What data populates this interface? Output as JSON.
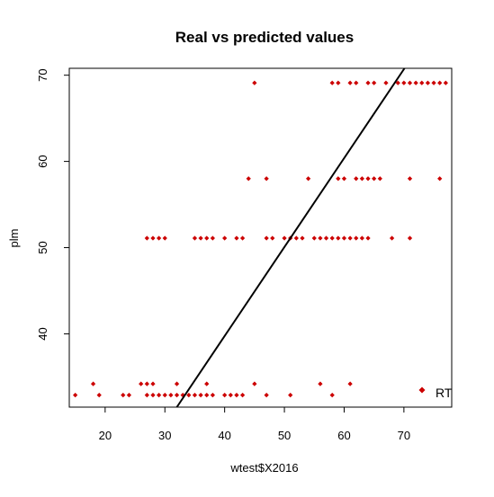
{
  "chart_data": {
    "type": "scatter",
    "title": "Real vs predicted values",
    "xlabel": "wtest$X2016",
    "ylabel": "plm",
    "xlim": [
      14,
      78
    ],
    "ylim": [
      31.5,
      70.8
    ],
    "x_ticks": [
      20,
      30,
      40,
      50,
      60,
      70
    ],
    "y_ticks": [
      40,
      50,
      60,
      70
    ],
    "grid": false,
    "point_color": "#cc0000",
    "line_color": "#000000",
    "legend": {
      "position": "bottom-right",
      "entries": [
        {
          "label": "RT",
          "color": "#cc0000"
        }
      ]
    },
    "reference_line": {
      "x": [
        32.0,
        70.1
      ],
      "y": [
        31.5,
        70.8
      ]
    },
    "series": [
      {
        "name": "RT",
        "points": [
          [
            15,
            32.9
          ],
          [
            18,
            34.2
          ],
          [
            19,
            32.9
          ],
          [
            23,
            32.9
          ],
          [
            24,
            32.9
          ],
          [
            26,
            34.2
          ],
          [
            27,
            34.2
          ],
          [
            27,
            32.9
          ],
          [
            28,
            34.2
          ],
          [
            28,
            32.9
          ],
          [
            29,
            32.9
          ],
          [
            30,
            32.9
          ],
          [
            31,
            32.9
          ],
          [
            32,
            34.2
          ],
          [
            32,
            32.9
          ],
          [
            33,
            32.9
          ],
          [
            34,
            32.9
          ],
          [
            35,
            32.9
          ],
          [
            36,
            32.9
          ],
          [
            37,
            34.2
          ],
          [
            37,
            32.9
          ],
          [
            38,
            32.9
          ],
          [
            40,
            32.9
          ],
          [
            41,
            32.9
          ],
          [
            42,
            32.9
          ],
          [
            43,
            32.9
          ],
          [
            45,
            34.2
          ],
          [
            47,
            32.9
          ],
          [
            51,
            32.9
          ],
          [
            56,
            34.2
          ],
          [
            58,
            32.9
          ],
          [
            61,
            34.2
          ],
          [
            27,
            51.1
          ],
          [
            28,
            51.1
          ],
          [
            29,
            51.1
          ],
          [
            30,
            51.1
          ],
          [
            35,
            51.1
          ],
          [
            36,
            51.1
          ],
          [
            37,
            51.1
          ],
          [
            38,
            51.1
          ],
          [
            40,
            51.1
          ],
          [
            42,
            51.1
          ],
          [
            43,
            51.1
          ],
          [
            47,
            51.1
          ],
          [
            48,
            51.1
          ],
          [
            50,
            51.1
          ],
          [
            51,
            51.1
          ],
          [
            52,
            51.1
          ],
          [
            53,
            51.1
          ],
          [
            55,
            51.1
          ],
          [
            56,
            51.1
          ],
          [
            57,
            51.1
          ],
          [
            58,
            51.1
          ],
          [
            59,
            51.1
          ],
          [
            60,
            51.1
          ],
          [
            61,
            51.1
          ],
          [
            62,
            51.1
          ],
          [
            63,
            51.1
          ],
          [
            64,
            51.1
          ],
          [
            68,
            51.1
          ],
          [
            71,
            51.1
          ],
          [
            44,
            58
          ],
          [
            47,
            58
          ],
          [
            54,
            58
          ],
          [
            59,
            58
          ],
          [
            60,
            58
          ],
          [
            62,
            58
          ],
          [
            63,
            58
          ],
          [
            64,
            58
          ],
          [
            65,
            58
          ],
          [
            66,
            58
          ],
          [
            71,
            58
          ],
          [
            76,
            58
          ],
          [
            45,
            69.1
          ],
          [
            58,
            69.1
          ],
          [
            59,
            69.1
          ],
          [
            61,
            69.1
          ],
          [
            62,
            69.1
          ],
          [
            64,
            69.1
          ],
          [
            65,
            69.1
          ],
          [
            67,
            69.1
          ],
          [
            69,
            69.1
          ],
          [
            70,
            69.1
          ],
          [
            71,
            69.1
          ],
          [
            72,
            69.1
          ],
          [
            73,
            69.1
          ],
          [
            74,
            69.1
          ],
          [
            75,
            69.1
          ],
          [
            76,
            69.1
          ],
          [
            77,
            69.1
          ]
        ]
      }
    ]
  }
}
